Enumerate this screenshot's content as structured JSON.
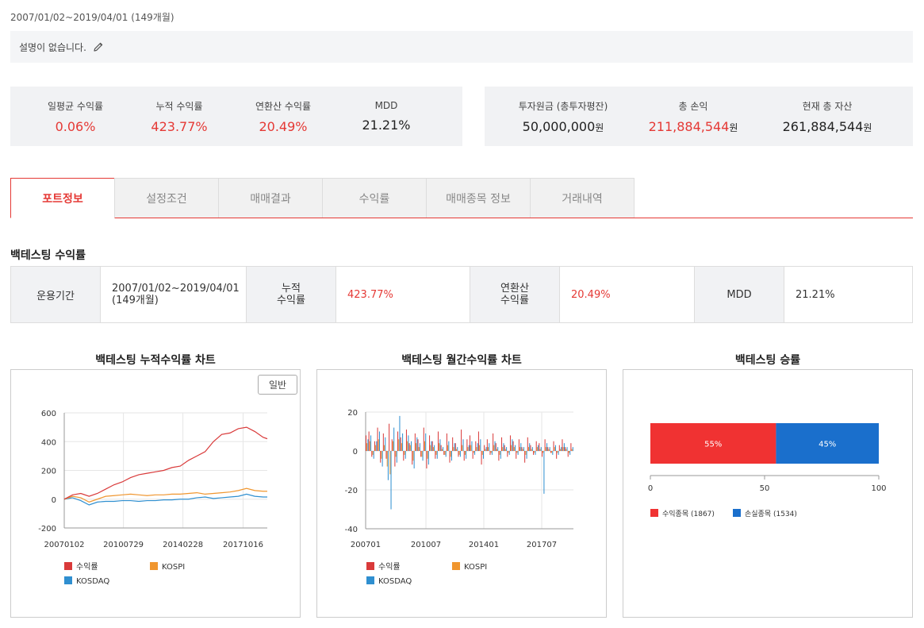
{
  "header": {
    "period": "2007/01/02~2019/04/01 (149개월)",
    "description": "설명이 없습니다."
  },
  "summary_left": [
    {
      "label": "일평균 수익률",
      "value": "0.06%",
      "color": "red"
    },
    {
      "label": "누적 수익률",
      "value": "423.77%",
      "color": "red"
    },
    {
      "label": "연환산 수익률",
      "value": "20.49%",
      "color": "red"
    },
    {
      "label": "MDD",
      "value": "21.21%",
      "color": "black"
    }
  ],
  "summary_right": [
    {
      "label": "투자원금 (총투자평잔)",
      "value": "50,000,000",
      "unit": "원",
      "color": "black"
    },
    {
      "label": "총 손익",
      "value": "211,884,544",
      "unit": "원",
      "color": "red"
    },
    {
      "label": "현재 총 자산",
      "value": "261,884,544",
      "unit": "원",
      "color": "black"
    }
  ],
  "tabs": [
    "포트정보",
    "설정조건",
    "매매결과",
    "수익률",
    "매매종목 정보",
    "거래내역"
  ],
  "active_tab": 0,
  "section": {
    "title": "백테스팅 수익률"
  },
  "info_table": {
    "period_label": "운용기간",
    "period_line1": "2007/01/02~2019/04/01",
    "period_line2": "(149개월)",
    "cum_label_1": "누적",
    "cum_label_2": "수익률",
    "cum_value": "423.77%",
    "annual_label_1": "연환산",
    "annual_label_2": "수익률",
    "annual_value": "20.49%",
    "mdd_label": "MDD",
    "mdd_value": "21.21%"
  },
  "colors": {
    "accent_red": "#e53935",
    "return_series": "#d93a3a",
    "kospi_series": "#f0962f",
    "kosdaq_series": "#2f8fd0",
    "win": "#f03232",
    "loss": "#1a6fcc"
  },
  "charts": {
    "cumulative": {
      "title": "백테스팅 누적수익률 차트",
      "button": "일반"
    },
    "monthly": {
      "title": "백테스팅 월간수익률 차트"
    },
    "winrate": {
      "title": "백테스팅 승률"
    }
  },
  "chart_data": [
    {
      "type": "line",
      "title": "백테스팅 누적수익률 차트",
      "x_ticks": [
        "20070102",
        "20100729",
        "20140228",
        "20171016"
      ],
      "y_ticks": [
        600,
        400,
        200,
        0,
        -200
      ],
      "ylim": [
        -200,
        600
      ],
      "x_years": [
        2007.0,
        2007.5,
        2008.0,
        2008.5,
        2009.0,
        2009.5,
        2010.0,
        2010.5,
        2011.0,
        2011.5,
        2012.0,
        2012.5,
        2013.0,
        2013.5,
        2014.0,
        2014.5,
        2015.0,
        2015.5,
        2016.0,
        2016.5,
        2017.0,
        2017.5,
        2018.0,
        2018.5,
        2019.0,
        2019.25
      ],
      "series": [
        {
          "name": "수익률",
          "values": [
            0,
            30,
            40,
            20,
            40,
            70,
            100,
            120,
            150,
            170,
            180,
            190,
            200,
            220,
            230,
            270,
            300,
            330,
            400,
            450,
            460,
            490,
            500,
            470,
            430,
            420
          ]
        },
        {
          "name": "KOSPI",
          "values": [
            0,
            20,
            10,
            -20,
            0,
            20,
            25,
            30,
            35,
            30,
            25,
            30,
            30,
            35,
            35,
            40,
            45,
            35,
            40,
            45,
            50,
            60,
            75,
            60,
            55,
            55
          ]
        },
        {
          "name": "KOSDAQ",
          "values": [
            0,
            10,
            -10,
            -40,
            -20,
            -15,
            -15,
            -10,
            -10,
            -15,
            -10,
            -10,
            -5,
            -5,
            0,
            0,
            10,
            15,
            5,
            10,
            15,
            20,
            35,
            20,
            15,
            15
          ]
        }
      ],
      "legend": [
        "수익률",
        "KOSPI",
        "KOSDAQ"
      ],
      "grid": true
    },
    {
      "type": "bar",
      "title": "백테스팅 월간수익률 차트",
      "x_ticks": [
        "200701",
        "201007",
        "201401",
        "201707"
      ],
      "y_ticks": [
        20,
        0,
        -20,
        -40
      ],
      "ylim": [
        -40,
        20
      ],
      "series": [
        {
          "name": "수익률",
          "values": [
            8,
            10,
            -3,
            5,
            12,
            -6,
            9,
            -4,
            14,
            6,
            -8,
            10,
            7,
            -5,
            11,
            4,
            -7,
            9,
            6,
            -3,
            12,
            -9,
            8,
            5,
            -4,
            10,
            3,
            -2,
            9,
            -6,
            7,
            4,
            -3,
            11,
            -5,
            6,
            8,
            -4,
            5,
            10,
            -7,
            3,
            6,
            -2,
            9,
            4,
            -5,
            7,
            3,
            -3,
            8,
            5,
            -4,
            6,
            2,
            -6,
            7,
            3,
            -2,
            5,
            4,
            -3,
            6,
            2,
            -1,
            5,
            -4,
            3,
            6,
            2,
            -3,
            4
          ]
        },
        {
          "name": "KOSPI",
          "values": [
            4,
            5,
            -2,
            3,
            6,
            -4,
            3,
            -8,
            -12,
            5,
            -3,
            6,
            4,
            -2,
            5,
            3,
            -5,
            4,
            2,
            -3,
            5,
            -4,
            3,
            2,
            -2,
            4,
            1,
            -2,
            3,
            -3,
            2,
            1,
            -2,
            3,
            -2,
            2,
            3,
            -1,
            2,
            3,
            -2,
            1,
            2,
            -1,
            3,
            1,
            -2,
            2,
            1,
            -1,
            3,
            2,
            -1,
            2,
            1,
            -2,
            2,
            1,
            -1,
            2,
            1,
            -1,
            2,
            1,
            -1,
            2,
            -1,
            1,
            2,
            1,
            -1,
            1
          ]
        },
        {
          "name": "KOSDAQ",
          "values": [
            6,
            8,
            -4,
            5,
            10,
            -8,
            7,
            -15,
            -30,
            12,
            -6,
            18,
            9,
            -4,
            8,
            5,
            -9,
            7,
            4,
            -5,
            9,
            -7,
            5,
            3,
            -4,
            6,
            2,
            -3,
            5,
            -5,
            4,
            2,
            -3,
            6,
            -4,
            3,
            5,
            -2,
            4,
            6,
            -4,
            2,
            4,
            -2,
            5,
            2,
            -4,
            4,
            2,
            -2,
            6,
            3,
            -2,
            4,
            2,
            -4,
            4,
            2,
            -2,
            3,
            2,
            -22,
            4,
            2,
            -2,
            3,
            -2,
            2,
            4,
            2,
            -2,
            2
          ]
        }
      ],
      "legend": [
        "수익률",
        "KOSPI",
        "KOSDAQ"
      ],
      "grid": true
    },
    {
      "type": "bar",
      "title": "백테스팅 승률",
      "orientation": "horizontal-stacked",
      "x_ticks": [
        "0",
        "50",
        "100"
      ],
      "xlim": [
        0,
        100
      ],
      "segments": [
        {
          "name": "수익종목",
          "count": "(1867)",
          "value": 55,
          "label": "55%"
        },
        {
          "name": "손실종목",
          "count": "(1534)",
          "value": 45,
          "label": "45%"
        }
      ]
    }
  ]
}
